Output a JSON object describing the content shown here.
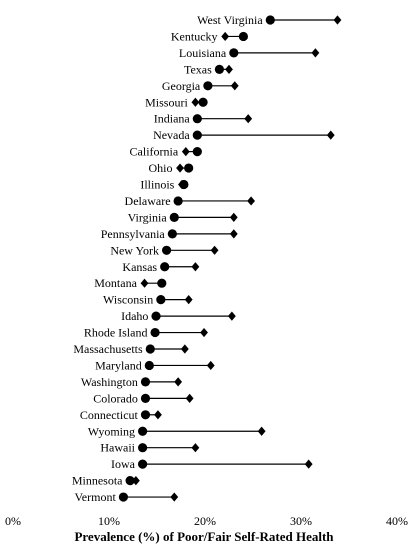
{
  "chart_data": {
    "type": "dumbbell",
    "xlabel": "Prevalence (%) of Poor/Fair Self-Rated Health",
    "ylabel": "",
    "xlim": [
      0,
      40
    ],
    "x_ticks": [
      0,
      10,
      20,
      30,
      40
    ],
    "x_tick_labels": [
      "0%",
      "10%",
      "20%",
      "30%",
      "40%"
    ],
    "grid": false,
    "legend": "none",
    "markers": {
      "circle_color": "#000000",
      "diamond_color": "#000000",
      "line_color": "#000000"
    },
    "categories": [
      "West Virginia",
      "Kentucky",
      "Louisiana",
      "Texas",
      "Georgia",
      "Missouri",
      "Indiana",
      "Nevada",
      "California",
      "Ohio",
      "Illinois",
      "Delaware",
      "Virginia",
      "Pennsylvania",
      "New York",
      "Kansas",
      "Montana",
      "Wisconsin",
      "Idaho",
      "Rhode Island",
      "Massachusetts",
      "Maryland",
      "Washington",
      "Colorado",
      "Connecticut",
      "Wyoming",
      "Hawaii",
      "Iowa",
      "Minnesota",
      "Vermont"
    ],
    "series": [
      {
        "marker": "circle",
        "values": [
          26.8,
          24.0,
          23.0,
          21.5,
          20.3,
          19.8,
          19.2,
          19.2,
          19.2,
          18.3,
          17.8,
          17.2,
          16.8,
          16.6,
          16.0,
          15.8,
          15.5,
          15.4,
          14.9,
          14.8,
          14.3,
          14.2,
          13.8,
          13.8,
          13.8,
          13.5,
          13.5,
          13.5,
          12.2,
          11.5
        ]
      },
      {
        "marker": "diamond",
        "values": [
          33.8,
          22.1,
          31.5,
          22.5,
          23.1,
          19.0,
          24.5,
          33.1,
          18.0,
          17.4,
          17.6,
          24.8,
          23.0,
          23.0,
          21.0,
          19.0,
          13.7,
          18.3,
          22.8,
          19.9,
          17.9,
          20.6,
          17.2,
          18.4,
          15.1,
          25.9,
          19.0,
          30.8,
          12.8,
          16.8
        ]
      }
    ]
  }
}
